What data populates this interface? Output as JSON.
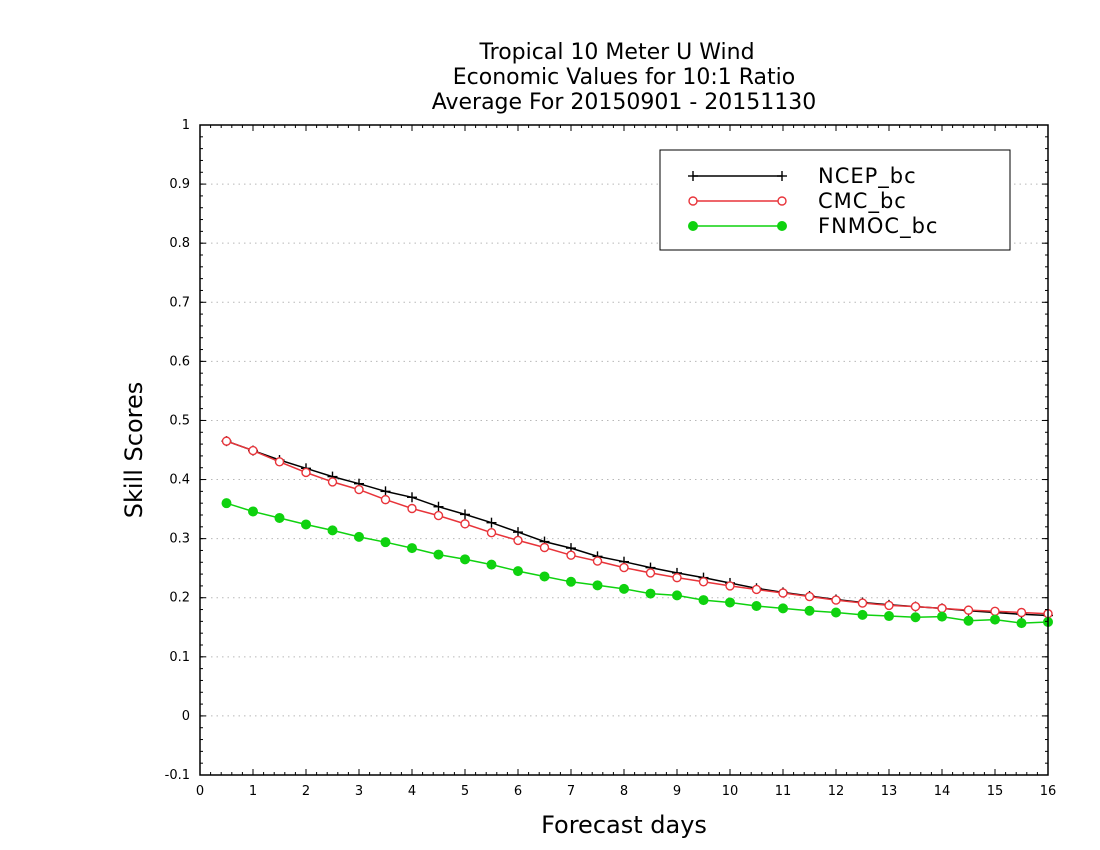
{
  "chart_data": {
    "type": "line",
    "title_lines": [
      "Tropical 10 Meter U Wind",
      "Economic Values for 10:1 Ratio",
      "Average For 20150901 - 20151130"
    ],
    "xlabel": "Forecast days",
    "ylabel": "Skill Scores",
    "xlim": [
      0,
      16
    ],
    "ylim": [
      -0.1,
      1
    ],
    "x_ticks": [
      0,
      1,
      2,
      3,
      4,
      5,
      6,
      7,
      8,
      9,
      10,
      11,
      12,
      13,
      14,
      15,
      16
    ],
    "y_ticks": [
      -0.1,
      0,
      0.1,
      0.2,
      0.3,
      0.4,
      0.5,
      0.6,
      0.7,
      0.8,
      0.9,
      1
    ],
    "y_tick_labels": [
      "-0.1",
      "0",
      "0.1",
      "0.2",
      "0.3",
      "0.4",
      "0.5",
      "0.6",
      "0.7",
      "0.8",
      "0.9",
      "1"
    ],
    "grid": "horizontal dotted",
    "legend_position": "top-right",
    "x": [
      0.5,
      1,
      1.5,
      2,
      2.5,
      3,
      3.5,
      4,
      4.5,
      5,
      5.5,
      6,
      6.5,
      7,
      7.5,
      8,
      8.5,
      9,
      9.5,
      10,
      10.5,
      11,
      11.5,
      12,
      12.5,
      13,
      13.5,
      14,
      14.5,
      15,
      15.5,
      16
    ],
    "series": [
      {
        "name": "NCEP_bc",
        "color": "#000000",
        "marker": "plus",
        "values": [
          0.465,
          0.449,
          0.433,
          0.419,
          0.405,
          0.393,
          0.38,
          0.37,
          0.354,
          0.341,
          0.327,
          0.311,
          0.295,
          0.284,
          0.27,
          0.261,
          0.251,
          0.242,
          0.234,
          0.225,
          0.216,
          0.209,
          0.203,
          0.197,
          0.192,
          0.188,
          0.185,
          0.182,
          0.178,
          0.175,
          0.172,
          0.17
        ]
      },
      {
        "name": "CMC_bc",
        "color": "#e8343a",
        "marker": "open-circle",
        "values": [
          0.465,
          0.449,
          0.43,
          0.412,
          0.396,
          0.383,
          0.366,
          0.351,
          0.339,
          0.325,
          0.31,
          0.297,
          0.285,
          0.272,
          0.262,
          0.251,
          0.242,
          0.234,
          0.227,
          0.22,
          0.214,
          0.208,
          0.202,
          0.196,
          0.191,
          0.187,
          0.185,
          0.182,
          0.179,
          0.177,
          0.175,
          0.173
        ]
      },
      {
        "name": "FNMOC_bc",
        "color": "#0fd20f",
        "marker": "filled-circle",
        "values": [
          0.36,
          0.346,
          0.335,
          0.324,
          0.314,
          0.303,
          0.294,
          0.284,
          0.273,
          0.265,
          0.256,
          0.245,
          0.236,
          0.227,
          0.221,
          0.215,
          0.207,
          0.204,
          0.196,
          0.192,
          0.186,
          0.182,
          0.178,
          0.175,
          0.171,
          0.169,
          0.167,
          0.168,
          0.161,
          0.163,
          0.157,
          0.159
        ]
      }
    ]
  }
}
